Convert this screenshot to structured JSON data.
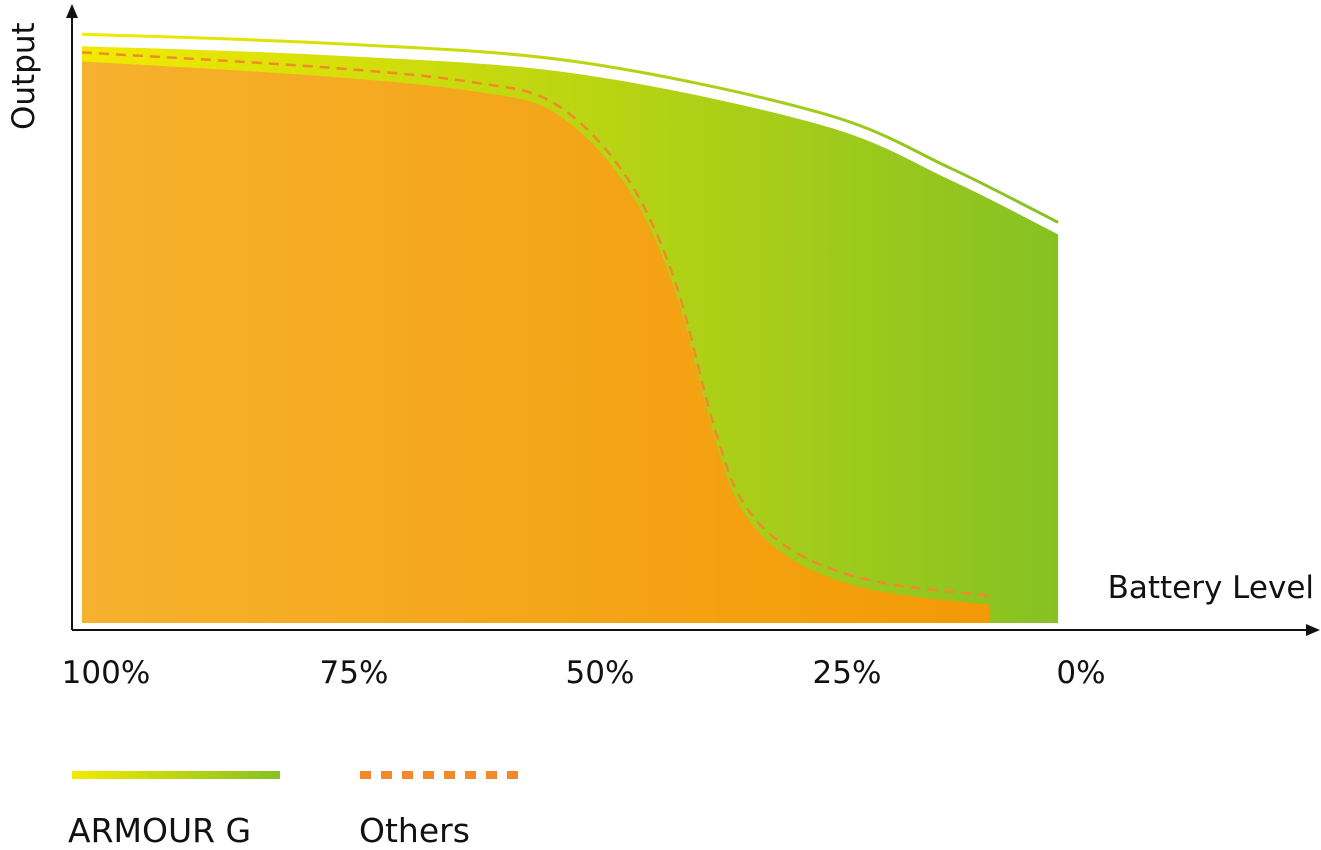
{
  "chart_data": {
    "type": "area",
    "xlabel": "Battery Level",
    "ylabel": "Output",
    "x_ticks": [
      "100%",
      "75%",
      "50%",
      "25%",
      "0%"
    ],
    "xlim": [
      100,
      0
    ],
    "ylim": [
      0,
      1
    ],
    "grid": false,
    "legend_position": "bottom-left",
    "colors": {
      "armour_start": "#f2ea00",
      "armour_end": "#86c123",
      "others_fill_start": "#f6b12e",
      "others_fill_end": "#f39a05",
      "others_line": "#f28a2b",
      "axis": "#111111"
    },
    "series": [
      {
        "name": "ARMOUR G",
        "style": "solid-gradient",
        "points": [
          [
            100,
            0.97
          ],
          [
            75,
            0.955
          ],
          [
            50,
            0.925
          ],
          [
            25,
            0.84
          ],
          [
            12,
            0.75
          ],
          [
            1,
            0.66
          ]
        ]
      },
      {
        "name": "Others",
        "style": "dashed",
        "points": [
          [
            100,
            0.94
          ],
          [
            75,
            0.915
          ],
          [
            60,
            0.89
          ],
          [
            52,
            0.855
          ],
          [
            45,
            0.74
          ],
          [
            40,
            0.57
          ],
          [
            36,
            0.33
          ],
          [
            33,
            0.2
          ],
          [
            28,
            0.12
          ],
          [
            20,
            0.07
          ],
          [
            8,
            0.045
          ]
        ]
      }
    ]
  }
}
